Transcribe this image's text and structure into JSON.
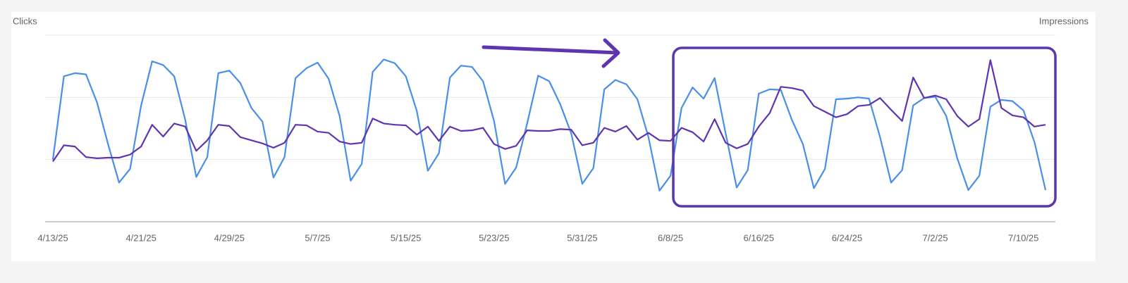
{
  "chart_data": {
    "type": "line",
    "y_label": "Clicks",
    "y2_label": "Impressions",
    "categories": [
      "4/13/25",
      null,
      null,
      null,
      null,
      null,
      null,
      null,
      "4/21/25",
      null,
      null,
      null,
      null,
      null,
      null,
      null,
      "4/29/25",
      null,
      null,
      null,
      null,
      null,
      null,
      null,
      "5/7/25",
      null,
      null,
      null,
      null,
      null,
      null,
      null,
      "5/15/25",
      null,
      null,
      null,
      null,
      null,
      null,
      null,
      "5/23/25",
      null,
      null,
      null,
      null,
      null,
      null,
      null,
      "5/31/25",
      null,
      null,
      null,
      null,
      null,
      null,
      null,
      "6/8/25",
      null,
      null,
      null,
      null,
      null,
      null,
      null,
      "6/16/25",
      null,
      null,
      null,
      null,
      null,
      null,
      null,
      "6/24/25",
      null,
      null,
      null,
      null,
      null,
      null,
      null,
      "7/2/25",
      null,
      null,
      null,
      null,
      null,
      null,
      null,
      "7/10/25",
      null,
      null
    ],
    "series": [
      {
        "name": "Clicks",
        "color": "#4a8fe7",
        "values": [
          100,
          234,
          239,
          237,
          192,
          125,
          63,
          85,
          187,
          258,
          252,
          234,
          164,
          72,
          104,
          239,
          243,
          223,
          183,
          161,
          71,
          104,
          231,
          247,
          256,
          230,
          170,
          66,
          93,
          241,
          261,
          255,
          234,
          178,
          82,
          110,
          232,
          251,
          249,
          226,
          162,
          61,
          87,
          158,
          235,
          226,
          189,
          142,
          61,
          86,
          213,
          228,
          221,
          197,
          136,
          50,
          74,
          183,
          216,
          198,
          231,
          142,
          55,
          83,
          206,
          213,
          212,
          164,
          125,
          54,
          85,
          197,
          198,
          200,
          198,
          136,
          63,
          83,
          187,
          199,
          201,
          170,
          102,
          51,
          74,
          185,
          196,
          194,
          179,
          128,
          51
        ]
      },
      {
        "name": "Impressions",
        "color": "#5e35b1",
        "axis": "y2",
        "values": [
          97,
          123,
          121,
          104,
          102,
          103,
          103,
          108,
          121,
          156,
          137,
          158,
          153,
          114,
          131,
          156,
          154,
          136,
          131,
          126,
          119,
          127,
          156,
          155,
          145,
          143,
          129,
          125,
          127,
          166,
          158,
          156,
          155,
          140,
          153,
          130,
          153,
          146,
          147,
          151,
          125,
          117,
          122,
          147,
          146,
          146,
          149,
          148,
          123,
          127,
          151,
          145,
          154,
          132,
          143,
          131,
          130,
          151,
          144,
          129,
          165,
          127,
          118,
          125,
          153,
          175,
          217,
          215,
          211,
          186,
          177,
          168,
          173,
          186,
          188,
          199,
          180,
          162,
          232,
          199,
          203,
          197,
          170,
          153,
          165,
          260,
          183,
          171,
          168,
          153,
          156
        ]
      }
    ],
    "ylim": [
      0,
      300
    ],
    "y2lim": [
      0,
      300
    ],
    "gridlines": [
      100,
      200,
      300
    ]
  }
}
